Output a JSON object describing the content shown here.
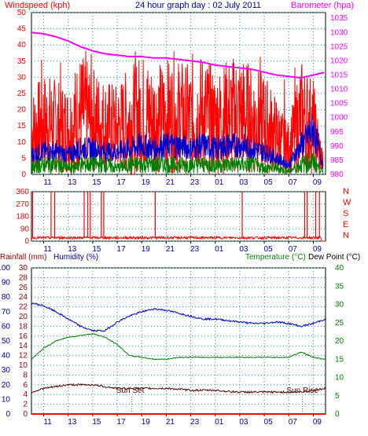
{
  "title": "24 hour graph day : 02 July 2011",
  "colors": {
    "red": "#ff0000",
    "blue": "#0000cc",
    "green": "#008000",
    "magenta": "#ff00ff",
    "maroon": "#5a0000",
    "grid": "#00a0a0",
    "axis_dark": "#000000"
  },
  "chart_data": [
    {
      "type": "line",
      "panel": "wind",
      "left_label": "Windspeed (kph)",
      "right_label": "Barometer (hpa)",
      "x_ticks": [
        "11",
        "13",
        "15",
        "17",
        "19",
        "21",
        "23",
        "01",
        "03",
        "05",
        "07",
        "09"
      ],
      "y_left": {
        "ticks": [
          "0",
          "5",
          "10",
          "15",
          "20",
          "25",
          "30",
          "35",
          "40",
          "45",
          "50"
        ],
        "ylim": [
          0,
          50
        ]
      },
      "y_right": {
        "ticks": [
          "980",
          "985",
          "990",
          "995",
          "1000",
          "1005",
          "1010",
          "1015",
          "1020",
          "1025",
          "1030",
          "1035"
        ],
        "ylim": [
          980,
          1037
        ]
      },
      "grid": true,
      "series": [
        {
          "name": "Windspeed gust",
          "color": "red",
          "hours": [
            9,
            10,
            11,
            12,
            13,
            14,
            15,
            16,
            17,
            18,
            19,
            20,
            21,
            22,
            23,
            24,
            25,
            26,
            27,
            28,
            29,
            30,
            31,
            32,
            33
          ],
          "values": [
            13,
            16,
            15,
            14,
            19,
            17,
            15,
            14,
            17,
            19,
            17,
            18,
            18,
            17,
            19,
            16,
            18,
            19,
            17,
            16,
            12,
            8,
            18,
            15,
            0
          ]
        },
        {
          "name": "Windspeed average",
          "color": "blue",
          "hours": [
            9,
            10,
            11,
            12,
            13,
            14,
            15,
            16,
            17,
            18,
            19,
            20,
            21,
            22,
            23,
            24,
            25,
            26,
            27,
            28,
            29,
            30,
            31,
            32,
            33
          ],
          "values": [
            6,
            7,
            7,
            6,
            8,
            8,
            7,
            7,
            8,
            9,
            8,
            9,
            9,
            8,
            9,
            8,
            9,
            9,
            8,
            7,
            5,
            3,
            9,
            14,
            0
          ]
        },
        {
          "name": "Wind low",
          "color": "green",
          "hours": [
            9,
            10,
            11,
            12,
            13,
            14,
            15,
            16,
            17,
            18,
            19,
            20,
            21,
            22,
            23,
            24,
            25,
            26,
            27,
            28,
            29,
            30,
            31,
            32,
            33
          ],
          "values": [
            2,
            3,
            3,
            2,
            3,
            3,
            3,
            2,
            3,
            3,
            3,
            3,
            3,
            3,
            3,
            3,
            3,
            3,
            3,
            2,
            2,
            1,
            3,
            4,
            0
          ]
        },
        {
          "name": "Barometer",
          "color": "magenta",
          "hours": [
            9,
            10,
            11,
            12,
            13,
            14,
            15,
            16,
            17,
            18,
            19,
            20,
            21,
            22,
            23,
            24,
            25,
            26,
            27,
            28,
            29,
            30,
            31,
            32,
            33
          ],
          "values": [
            1030,
            1029.5,
            1028.5,
            1027,
            1025,
            1023.5,
            1022.5,
            1022,
            1021.5,
            1021.5,
            1021,
            1021,
            1020.5,
            1020,
            1019.5,
            1018.5,
            1018,
            1017.5,
            1017,
            1016,
            1015,
            1014.5,
            1014,
            1015,
            1016
          ]
        }
      ]
    },
    {
      "type": "line",
      "panel": "direction",
      "y_left": {
        "ticks": [
          "0",
          "90",
          "180",
          "270",
          "360"
        ],
        "ylim": [
          0,
          360
        ]
      },
      "right_letters": [
        "N",
        "W",
        "S",
        "E",
        "N"
      ],
      "x_ticks": [
        "11",
        "13",
        "15",
        "17",
        "19",
        "21",
        "23",
        "01",
        "03",
        "05",
        "07",
        "09"
      ],
      "grid": true,
      "series": [
        {
          "name": "Wind direction",
          "color": "red",
          "baseline": 25,
          "spikes_hours": [
            9.1,
            10.6,
            10.9,
            13.3,
            13.6,
            13.8,
            14.7,
            14.9,
            19.1,
            26.2,
            31.3,
            31.5,
            32.2,
            32.5
          ]
        }
      ]
    },
    {
      "type": "line",
      "panel": "temperature",
      "left_label_a": "Rainfall (mm)",
      "left_label_b": "Humidity (%)",
      "right_label_a": "Temperature (°C)",
      "right_label_b": "Dew Point (°C)",
      "x_ticks": [
        "11",
        "13",
        "15",
        "17",
        "19",
        "21",
        "23",
        "01",
        "03",
        "05",
        "07",
        "09"
      ],
      "y_humidity": {
        "ticks": [
          "0",
          "10",
          "20",
          "30",
          "40",
          "50",
          "60",
          "70",
          "80",
          "90",
          "100"
        ],
        "ylim": [
          0,
          100
        ]
      },
      "y_rain": {
        "ticks": [
          "0",
          "2",
          "4",
          "6",
          "8",
          "10",
          "12",
          "14",
          "16",
          "18",
          "20",
          "22",
          "24",
          "26",
          "28",
          "30"
        ],
        "ylim": [
          0,
          30
        ]
      },
      "y_temp": {
        "ticks": [
          "0",
          "5",
          "10",
          "15",
          "20",
          "25",
          "30",
          "35",
          "40"
        ],
        "ylim": [
          0,
          40
        ]
      },
      "annotations": [
        {
          "text": "Sun Set",
          "hour": 17.2
        },
        {
          "text": "Sun Rise",
          "hour": 31.1
        }
      ],
      "grid": true,
      "series": [
        {
          "name": "Humidity",
          "color": "blue",
          "axis": "humidity",
          "hours": [
            9,
            10,
            11,
            12,
            13,
            14,
            15,
            16,
            17,
            18,
            19,
            20,
            21,
            22,
            23,
            24,
            25,
            26,
            27,
            28,
            29,
            30,
            31,
            32,
            33
          ],
          "values": [
            76,
            74,
            70,
            65,
            60,
            57,
            57,
            63,
            67,
            70,
            72,
            71,
            69,
            67,
            65,
            65,
            64,
            63,
            62,
            62,
            63,
            62,
            60,
            62,
            65
          ]
        },
        {
          "name": "Temperature",
          "color": "green",
          "axis": "temp",
          "hours": [
            9,
            10,
            11,
            12,
            13,
            14,
            15,
            16,
            17,
            18,
            19,
            20,
            21,
            22,
            23,
            24,
            25,
            26,
            27,
            28,
            29,
            30,
            31,
            32,
            33
          ],
          "values": [
            15,
            18,
            20,
            21,
            21.5,
            22,
            21,
            19,
            16,
            15.5,
            15,
            15,
            15.5,
            15.5,
            15.5,
            15.5,
            15.5,
            15.5,
            15.5,
            15.5,
            15.5,
            15.5,
            17,
            15.5,
            15
          ]
        },
        {
          "name": "Dew Point",
          "color": "maroon",
          "axis": "temp",
          "hours": [
            9,
            10,
            11,
            12,
            13,
            14,
            15,
            16,
            17,
            18,
            19,
            20,
            21,
            22,
            23,
            24,
            25,
            26,
            27,
            28,
            29,
            30,
            31,
            32,
            33
          ],
          "values": [
            6,
            7,
            7.5,
            8,
            8,
            8,
            7.5,
            7,
            7,
            7,
            7,
            7,
            6.8,
            6.5,
            6.5,
            6.5,
            6.2,
            6,
            6,
            6,
            6,
            6,
            6,
            6.5,
            7
          ]
        },
        {
          "name": "Rainfall",
          "color": "red",
          "axis": "rain",
          "hours": [
            9,
            33
          ],
          "values": [
            0,
            0
          ]
        }
      ]
    }
  ]
}
